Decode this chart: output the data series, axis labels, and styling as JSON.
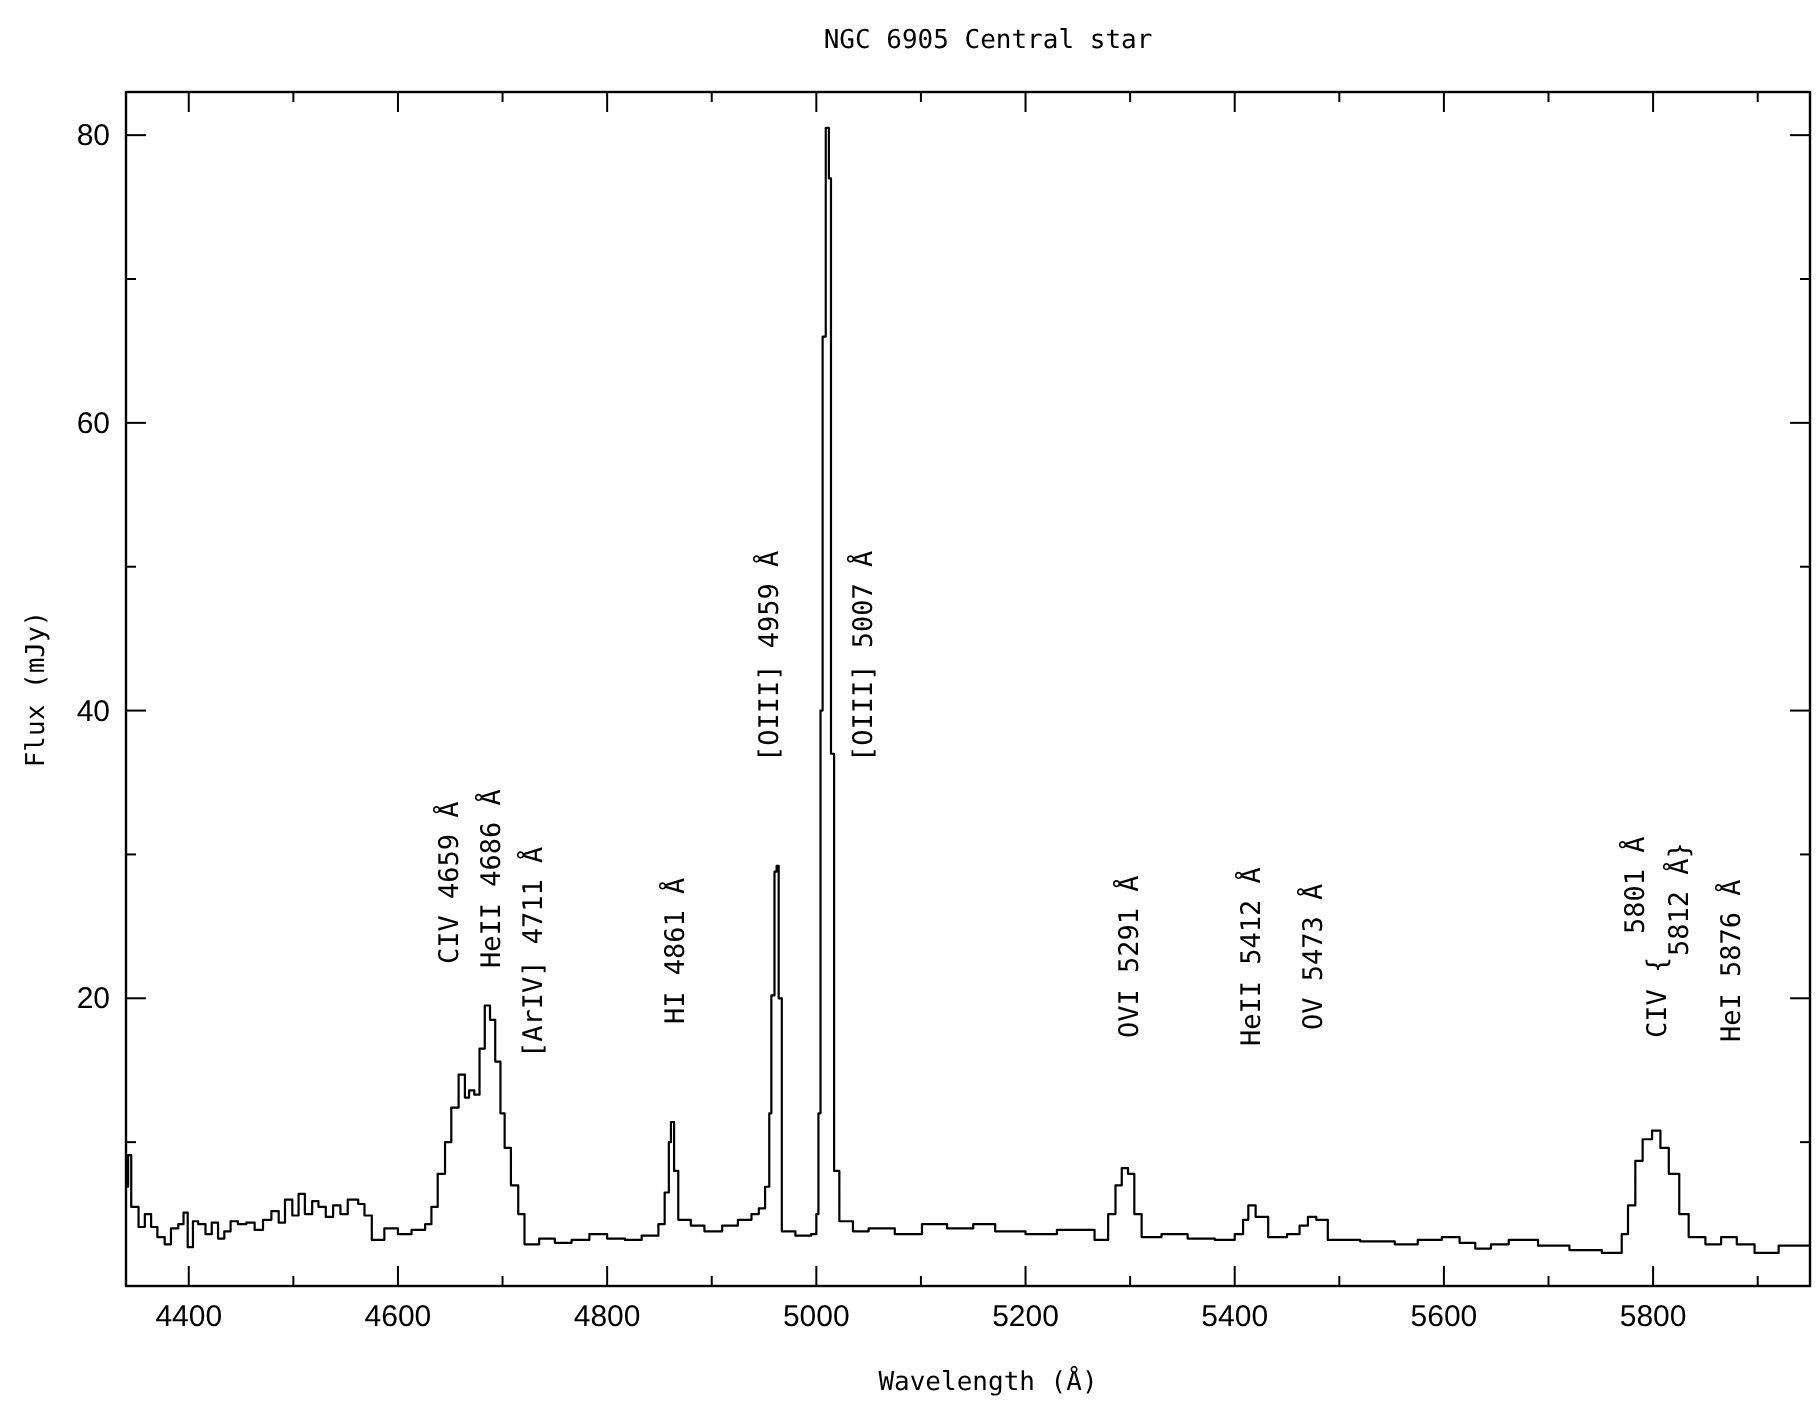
{
  "chart_data": {
    "type": "step",
    "title": "NGC 6905 Central star",
    "xlabel": "Wavelength (Å)",
    "ylabel": "Flux (mJy)",
    "xlim": [
      4340,
      5950
    ],
    "ylim": [
      0,
      83
    ],
    "xticks": [
      4400,
      {
        "value": 4500,
        "label": null
      },
      4600,
      {
        "value": 4700,
        "label": null
      },
      4800,
      {
        "value": 4900,
        "label": null
      },
      5000,
      {
        "value": 5100,
        "label": null
      },
      5200,
      {
        "value": 5300,
        "label": null
      },
      5400,
      {
        "value": 5500,
        "label": null
      },
      5600,
      {
        "value": 5700,
        "label": null
      },
      5800,
      {
        "value": 5900,
        "label": null
      }
    ],
    "yticks": [
      {
        "value": 10,
        "label": null
      },
      20,
      {
        "value": 30,
        "label": null
      },
      40,
      {
        "value": 50,
        "label": null
      },
      60,
      {
        "value": 70,
        "label": null
      },
      80
    ],
    "grid": false,
    "marker": "none",
    "line_style": "solid",
    "series": [
      {
        "color": "#000000",
        "x": [
          4340,
          4342,
          4345,
          4352,
          4358,
          4364,
          4370,
          4377,
          4383,
          4390,
          4395,
          4399,
          4404,
          4409,
          4416,
          4422,
          4428,
          4434,
          4440,
          4447,
          4455,
          4463,
          4471,
          4479,
          4486,
          4492,
          4499,
          4505,
          4511,
          4518,
          4524,
          4531,
          4538,
          4545,
          4552,
          4562,
          4568,
          4575,
          4587,
          4600,
          4613,
          4626,
          4632,
          4638,
          4645,
          4651,
          4658,
          4664,
          4668,
          4673,
          4678,
          4683,
          4688,
          4693,
          4698,
          4702,
          4708,
          4715,
          4721,
          4735,
          4750,
          4766,
          4783,
          4800,
          4817,
          4833,
          4849,
          4855,
          4859,
          4861,
          4864,
          4868,
          4880,
          4893,
          4910,
          4925,
          4938,
          4945,
          4951,
          4955,
          4957,
          4960,
          4962,
          4964,
          4967,
          4980,
          4995,
          5000,
          5002,
          5004,
          5006,
          5009,
          5012,
          5014,
          5017,
          5022,
          5035,
          5050,
          5075,
          5101,
          5125,
          5150,
          5171,
          5200,
          5230,
          5266,
          5279,
          5286,
          5292,
          5298,
          5304,
          5311,
          5330,
          5355,
          5381,
          5400,
          5408,
          5413,
          5420,
          5432,
          5450,
          5462,
          5470,
          5478,
          5489,
          5520,
          5553,
          5575,
          5598,
          5615,
          5630,
          5645,
          5662,
          5690,
          5720,
          5751,
          5770,
          5776,
          5783,
          5790,
          5799,
          5807,
          5815,
          5825,
          5834,
          5850,
          5865,
          5880,
          5897,
          5920,
          5950
        ],
        "values": [
          6.9,
          9.1,
          5.5,
          4.1,
          5.0,
          4.1,
          3.4,
          2.9,
          4.0,
          4.3,
          5.1,
          2.7,
          4.5,
          4.3,
          3.6,
          4.4,
          3.3,
          3.8,
          4.5,
          4.3,
          4.4,
          3.9,
          4.6,
          5.2,
          4.4,
          6.0,
          4.9,
          6.4,
          5.0,
          5.9,
          5.5,
          4.8,
          5.6,
          5.0,
          6.0,
          5.7,
          4.9,
          3.2,
          4.0,
          3.6,
          3.9,
          4.3,
          5.5,
          7.8,
          10.0,
          12.4,
          14.7,
          13.1,
          13.6,
          13.3,
          16.5,
          19.5,
          18.5,
          15.6,
          12.0,
          9.6,
          7.0,
          5.0,
          2.9,
          3.3,
          3.0,
          3.2,
          3.6,
          3.3,
          3.2,
          3.5,
          4.3,
          6.5,
          10.0,
          11.4,
          8.0,
          4.6,
          4.2,
          3.8,
          4.2,
          4.6,
          5.0,
          5.4,
          6.9,
          12.0,
          20.2,
          28.8,
          29.2,
          20.0,
          3.8,
          3.5,
          3.6,
          5.0,
          12.0,
          40.0,
          66.0,
          80.5,
          77.0,
          37.0,
          8.0,
          4.5,
          3.8,
          4.0,
          3.6,
          4.3,
          4.0,
          4.3,
          3.8,
          3.6,
          3.9,
          3.2,
          5.0,
          7.0,
          8.2,
          7.8,
          5.0,
          3.4,
          3.6,
          3.3,
          3.2,
          3.6,
          4.6,
          5.6,
          4.8,
          3.4,
          3.6,
          4.2,
          4.8,
          4.6,
          3.2,
          3.1,
          2.9,
          3.2,
          3.4,
          3.0,
          2.6,
          2.9,
          3.2,
          2.8,
          2.5,
          2.3,
          3.6,
          5.6,
          8.7,
          10.2,
          10.8,
          9.6,
          7.8,
          5.0,
          3.4,
          2.9,
          3.4,
          2.9,
          2.3,
          2.8,
          3.2
        ]
      }
    ],
    "annotations": [
      "CIV 4659 Å",
      "HeII 4686 Å",
      "[ArIV] 4711 Å",
      "HI 4861 Å",
      "[OIII] 4959 Å",
      "[OIII] 5007 Å",
      "OVI 5291 Å",
      "HeII 5412 Å",
      "OV 5473 Å",
      "CIV {",
      "5801 Å",
      "5812 Å}",
      "HeI 5876 Å"
    ]
  }
}
